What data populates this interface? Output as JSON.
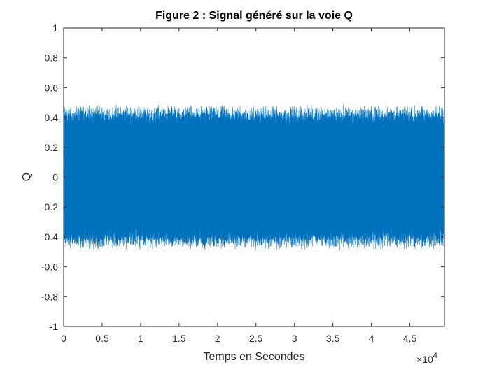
{
  "chart_data": {
    "type": "line",
    "title": "Figure 2 : Signal généré sur la voie Q",
    "xlabel": "Temps en Secondes",
    "ylabel": "Q",
    "xlim": [
      0,
      49500
    ],
    "ylim": [
      -1,
      1
    ],
    "x_ticks": [
      0,
      5000,
      10000,
      15000,
      20000,
      25000,
      30000,
      35000,
      40000,
      45000
    ],
    "x_tick_labels": [
      "0",
      "0.5",
      "1",
      "1.5",
      "2",
      "2.5",
      "3",
      "3.5",
      "4",
      "4.5"
    ],
    "x_exponent_label": "×10",
    "x_exponent_power": "4",
    "y_ticks": [
      -1,
      -0.8,
      -0.6,
      -0.4,
      -0.2,
      0,
      0.2,
      0.4,
      0.6,
      0.8,
      1
    ],
    "y_tick_labels": [
      "-1",
      "-0.8",
      "-0.6",
      "-0.4",
      "-0.2",
      "0",
      "0.2",
      "0.4",
      "0.6",
      "0.8",
      "1"
    ],
    "grid": false,
    "series": [
      {
        "color": "#0072BD",
        "x_range": [
          0,
          49500
        ],
        "approx_amplitude": 0.45,
        "approx_peak_range": [
          0.4,
          0.49
        ],
        "description_level": "dense noise-like signal"
      }
    ]
  },
  "colors": {
    "signal": "#0072BD",
    "axes": "#262626",
    "background": "#ffffff"
  }
}
